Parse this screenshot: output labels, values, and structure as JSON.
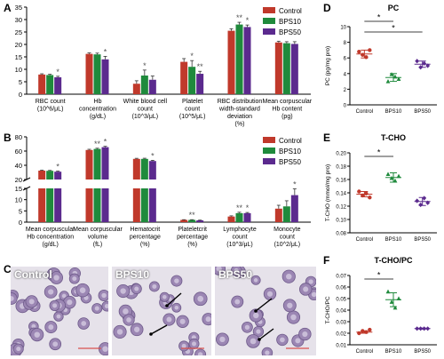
{
  "colors": {
    "control": "#c0392b",
    "bps10": "#1f8a3c",
    "bps50": "#5b2a8e",
    "bar_err": "#333333",
    "scale_bar": "#d9534f"
  },
  "panels": {
    "A": "A",
    "B": "B",
    "C": "C",
    "D": "D",
    "E": "E",
    "F": "F"
  },
  "micrographs": [
    {
      "label": "Control"
    },
    {
      "label": "BPS10"
    },
    {
      "label": "BPS50"
    }
  ],
  "chart_data": [
    {
      "id": "A",
      "type": "bar",
      "legend": [
        "Control",
        "BPS10",
        "BPS50"
      ],
      "legend_position": "top-right",
      "ylim": [
        0,
        35
      ],
      "yticks": [
        "0",
        "5",
        "10",
        "15",
        "20",
        "25",
        "30",
        "35"
      ],
      "categories": [
        [
          "RBC count",
          "(10^6/μL)"
        ],
        [
          "Hb",
          "concentration",
          "(g/dL)"
        ],
        [
          "White blood cell",
          "count",
          "(10^3/μL)"
        ],
        [
          "Platelet",
          "count",
          "(10^5/μL)"
        ],
        [
          "RBC distribution",
          "width-standard",
          "deviation",
          "(%)"
        ],
        [
          "Mean corpuscular",
          "Hb  content",
          "(pg)"
        ]
      ],
      "series": [
        {
          "name": "Control",
          "values": [
            7.9,
            16.2,
            4.2,
            13.0,
            25.5,
            20.8
          ],
          "err": [
            0.3,
            0.4,
            1.2,
            1.3,
            0.8,
            0.5
          ]
        },
        {
          "name": "BPS10",
          "values": [
            7.7,
            16.0,
            7.5,
            11.0,
            28.0,
            20.5
          ],
          "err": [
            0.3,
            0.5,
            2.2,
            2.5,
            0.9,
            0.6
          ]
        },
        {
          "name": "BPS50",
          "values": [
            6.8,
            14.0,
            5.8,
            8.2,
            27.0,
            20.2
          ],
          "err": [
            0.4,
            1.2,
            1.5,
            1.0,
            0.8,
            0.9
          ]
        }
      ],
      "annotations": [
        {
          "cat": 0,
          "series": 2,
          "text": "*"
        },
        {
          "cat": 1,
          "series": 2,
          "text": "*"
        },
        {
          "cat": 2,
          "series": 1,
          "text": "*"
        },
        {
          "cat": 3,
          "series": 1,
          "text": "*"
        },
        {
          "cat": 3,
          "series": 2,
          "text": "**"
        },
        {
          "cat": 4,
          "series": 1,
          "text": "**"
        },
        {
          "cat": 4,
          "series": 2,
          "text": "*"
        }
      ]
    },
    {
      "id": "B",
      "type": "bar",
      "legend": [
        "Control",
        "BPS10",
        "BPS50"
      ],
      "legend_position": "top-right",
      "axis_break": true,
      "ylim_upper": [
        20,
        80
      ],
      "ylim_lower": [
        0,
        15
      ],
      "yticks_upper": [
        "20",
        "40",
        "60",
        "80"
      ],
      "yticks_lower": [
        "0",
        "5",
        "10",
        "15"
      ],
      "categories": [
        [
          "Mean corpuscular",
          "Hb concentration",
          "(g/dL)"
        ],
        [
          "Mean corpuscular",
          "volume",
          "(fL)"
        ],
        [
          "Hematocrit",
          "percentage",
          "(%)"
        ],
        [
          "Plateletcrit",
          "percentage",
          "(%)"
        ],
        [
          "Lymphocyte",
          "count",
          "(10^3/μL)"
        ],
        [
          "Monocyte",
          "count",
          "(10^2/μL)"
        ]
      ],
      "series": [
        {
          "name": "Control",
          "values": [
            32.5,
            61.5,
            49.0,
            1.0,
            2.5,
            6.0
          ],
          "err": [
            0.6,
            1.0,
            0.8,
            0.1,
            0.3,
            1.5
          ]
        },
        {
          "name": "BPS10",
          "values": [
            32.2,
            63.0,
            49.0,
            1.0,
            4.0,
            7.0
          ],
          "err": [
            0.6,
            1.0,
            0.9,
            0.1,
            0.4,
            2.5
          ]
        },
        {
          "name": "BPS50",
          "values": [
            31.0,
            65.5,
            46.0,
            0.8,
            4.0,
            12.0
          ],
          "err": [
            0.8,
            1.2,
            1.0,
            0.1,
            0.3,
            2.8
          ]
        }
      ],
      "annotations": [
        {
          "cat": 0,
          "series": 2,
          "text": "*"
        },
        {
          "cat": 1,
          "series": 1,
          "text": "**"
        },
        {
          "cat": 1,
          "series": 2,
          "text": "*"
        },
        {
          "cat": 2,
          "series": 2,
          "text": "*"
        },
        {
          "cat": 3,
          "series": 1,
          "text": "**"
        },
        {
          "cat": 4,
          "series": 1,
          "text": "**"
        },
        {
          "cat": 4,
          "series": 2,
          "text": "*"
        },
        {
          "cat": 5,
          "series": 2,
          "text": "*"
        }
      ]
    },
    {
      "id": "D",
      "type": "scatter",
      "title": "PC",
      "ylabel": "PC (pg/mg pro)",
      "categories": [
        "Control",
        "BPS10",
        "BPS50"
      ],
      "ylim": [
        0,
        10
      ],
      "yticks": [
        "0",
        "2",
        "4",
        "6",
        "8",
        "10"
      ],
      "points": [
        [
          6.8,
          6.4,
          6.1,
          7.0
        ],
        [
          3.0,
          3.9,
          3.6,
          3.3
        ],
        [
          5.6,
          4.8,
          5.3,
          5.0
        ]
      ],
      "means": [
        6.5,
        3.5,
        5.2
      ],
      "sd": [
        0.5,
        0.5,
        0.4
      ],
      "brackets": [
        {
          "from": 0,
          "to": 1,
          "text": "*"
        },
        {
          "from": 0,
          "to": 2,
          "text": "*"
        }
      ]
    },
    {
      "id": "E",
      "type": "scatter",
      "title": "T-CHO",
      "ylabel": "T-CHO (mmol/mg pro)",
      "categories": [
        "Control",
        "BPS10",
        "BPS50"
      ],
      "ylim": [
        0.08,
        0.2
      ],
      "yticks": [
        "0.08",
        "0.10",
        "0.12",
        "0.14",
        "0.16",
        "0.18",
        "0.20"
      ],
      "points": [
        [
          0.142,
          0.136,
          0.139,
          0.133
        ],
        [
          0.168,
          0.162,
          0.158,
          0.165
        ],
        [
          0.128,
          0.122,
          0.132,
          0.125
        ]
      ],
      "means": [
        0.138,
        0.163,
        0.127
      ],
      "sd": [
        0.004,
        0.007,
        0.006
      ],
      "brackets": [
        {
          "from": 0,
          "to": 1,
          "text": "*"
        }
      ]
    },
    {
      "id": "F",
      "type": "scatter",
      "title": "T-CHO/PC",
      "ylabel": "T-CHO/PC",
      "categories": [
        "Control",
        "BPS10",
        "BPS50"
      ],
      "ylim": [
        0.01,
        0.07
      ],
      "yticks": [
        "0.01",
        "0.02",
        "0.03",
        "0.04",
        "0.05",
        "0.06",
        "0.07"
      ],
      "points": [
        [
          0.02,
          0.022,
          0.021,
          0.023
        ],
        [
          0.056,
          0.047,
          0.042,
          0.05
        ],
        [
          0.024,
          0.024,
          0.024,
          0.024
        ]
      ],
      "means": [
        0.021,
        0.049,
        0.024
      ],
      "sd": [
        0.001,
        0.006,
        0.0005
      ],
      "brackets": [
        {
          "from": 0,
          "to": 1,
          "text": "*"
        }
      ]
    }
  ]
}
